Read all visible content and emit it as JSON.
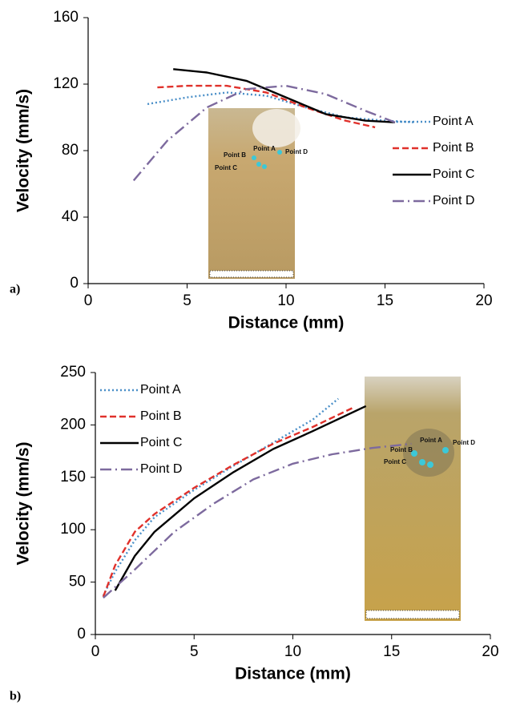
{
  "chart_data": [
    {
      "type": "line",
      "panel_label": "a)",
      "x_label": "Distance (mm)",
      "y_label": "Velocity (mm/s)",
      "xlim": [
        0,
        20
      ],
      "xticks": [
        0,
        5,
        10,
        15,
        20
      ],
      "ylim": [
        0,
        160
      ],
      "yticks": [
        0,
        40,
        80,
        120,
        160
      ],
      "legend": "right",
      "inset_labels": [
        "Point B",
        "Point A",
        "Point D",
        "Point C"
      ],
      "series": [
        {
          "name": "Point A",
          "color": "#4a8fc8",
          "line_style": "dotted",
          "x": [
            3,
            5,
            7,
            9,
            11,
            13,
            15,
            16.5
          ],
          "values": [
            108,
            112,
            115,
            113,
            106,
            100,
            98,
            97
          ]
        },
        {
          "name": "Point B",
          "color": "#e0312b",
          "line_style": "dashed",
          "x": [
            3.5,
            5,
            7,
            9,
            11,
            13,
            14.5
          ],
          "values": [
            118,
            119,
            119,
            115,
            106,
            98,
            94
          ]
        },
        {
          "name": "Point C",
          "color": "#000000",
          "line_style": "solid",
          "x": [
            4.3,
            6,
            8,
            10,
            12,
            14,
            15.5
          ],
          "values": [
            129,
            127,
            122,
            112,
            102,
            98,
            97
          ]
        },
        {
          "name": "Point D",
          "color": "#7d6a9e",
          "line_style": "dashdot",
          "x": [
            2.3,
            4,
            6,
            8,
            10,
            12,
            14,
            15.5
          ],
          "values": [
            62,
            86,
            106,
            117,
            119,
            114,
            104,
            97
          ]
        }
      ]
    },
    {
      "type": "line",
      "panel_label": "b)",
      "x_label": "Distance (mm)",
      "y_label": "Velocity (mm/s)",
      "xlim": [
        0,
        20
      ],
      "xticks": [
        0,
        5,
        10,
        15,
        20
      ],
      "ylim": [
        0,
        250
      ],
      "yticks": [
        0,
        50,
        100,
        150,
        200,
        250
      ],
      "legend": "upper left",
      "inset_labels": [
        "Point B",
        "Point A",
        "Point D",
        "Point C"
      ],
      "series": [
        {
          "name": "Point A",
          "color": "#4a8fc8",
          "line_style": "dotted",
          "x": [
            0.4,
            1,
            2,
            3,
            5,
            7,
            9,
            11,
            12.3
          ],
          "values": [
            37,
            60,
            90,
            112,
            138,
            161,
            183,
            205,
            225
          ]
        },
        {
          "name": "Point B",
          "color": "#e0312b",
          "line_style": "dashed",
          "x": [
            0.4,
            1,
            2,
            3,
            5,
            7,
            9,
            11,
            13
          ],
          "values": [
            36,
            66,
            98,
            115,
            140,
            162,
            182,
            198,
            216
          ]
        },
        {
          "name": "Point C",
          "color": "#000000",
          "line_style": "solid",
          "x": [
            1,
            2,
            3,
            5,
            7,
            9,
            11,
            13.7
          ],
          "values": [
            42,
            75,
            98,
            130,
            155,
            177,
            194,
            218
          ]
        },
        {
          "name": "Point D",
          "color": "#7d6a9e",
          "line_style": "dashdot",
          "x": [
            0.4,
            2,
            4,
            6,
            8,
            10,
            12,
            14,
            16
          ],
          "values": [
            35,
            62,
            98,
            125,
            148,
            163,
            172,
            178,
            182
          ]
        }
      ]
    }
  ]
}
